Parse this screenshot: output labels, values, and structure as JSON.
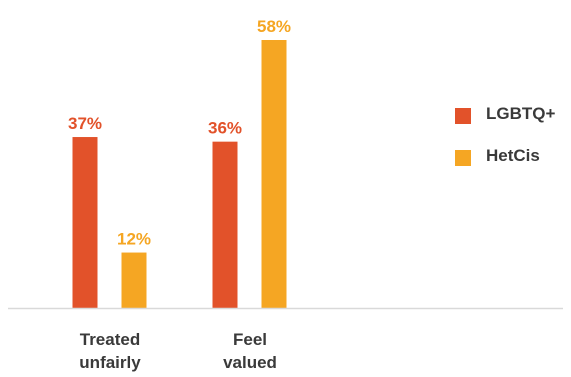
{
  "chart_data": {
    "type": "bar",
    "categories": [
      [
        "Treated",
        "unfairly"
      ],
      [
        "Feel",
        "valued"
      ]
    ],
    "series": [
      {
        "name": "LGBTQ+",
        "values": [
          37,
          36
        ],
        "color": "#e2522a"
      },
      {
        "name": "HetCis",
        "values": [
          12,
          58
        ],
        "color": "#f5a623"
      }
    ],
    "value_suffix": "%",
    "ylim": [
      0,
      60
    ],
    "grid": false,
    "legend_position": "right",
    "axis_color": "#d9d9d9"
  }
}
